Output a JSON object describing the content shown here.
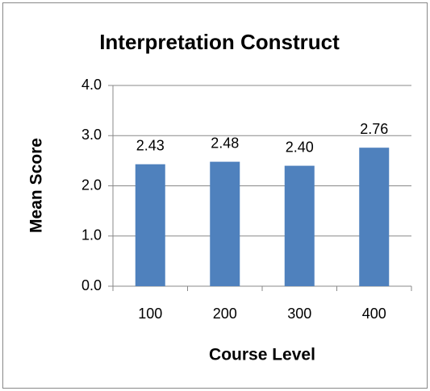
{
  "chart_data": {
    "type": "bar",
    "title": "Interpretation Construct",
    "x_label": "Course Level",
    "y_label": "Mean Score",
    "categories": [
      "100",
      "200",
      "300",
      "400"
    ],
    "values": [
      2.43,
      2.48,
      2.4,
      2.76
    ],
    "value_labels": [
      "2.43",
      "2.48",
      "2.40",
      "2.76"
    ],
    "color": "#4f81bd",
    "ylim": [
      0,
      4
    ],
    "yticks": [
      {
        "value": 0,
        "label": "0.0"
      },
      {
        "value": 1,
        "label": "1.0"
      },
      {
        "value": 2,
        "label": "2.0"
      },
      {
        "value": 3,
        "label": "3.0"
      },
      {
        "value": 4,
        "label": "4.0"
      }
    ],
    "grid": true
  }
}
